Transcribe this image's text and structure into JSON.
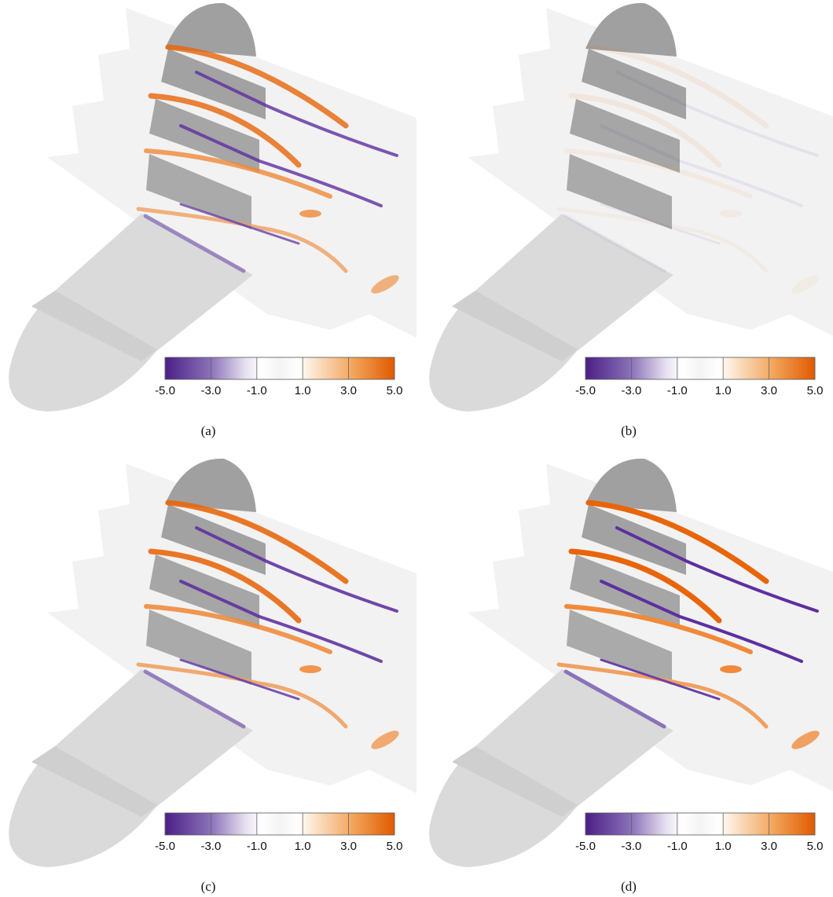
{
  "panels": [
    {
      "label": "(a)"
    },
    {
      "label": "(b)"
    },
    {
      "label": "(c)"
    },
    {
      "label": "(d)"
    }
  ],
  "colorbar": {
    "range": [
      -5,
      5
    ],
    "ticks": [
      {
        "value": -5,
        "label": "-5.0"
      },
      {
        "value": -3,
        "label": "-3.0"
      },
      {
        "value": -1,
        "label": "-1.0"
      },
      {
        "value": 1,
        "label": "1.0"
      },
      {
        "value": 3,
        "label": "3.0"
      },
      {
        "value": 5,
        "label": "5.0"
      }
    ]
  }
}
